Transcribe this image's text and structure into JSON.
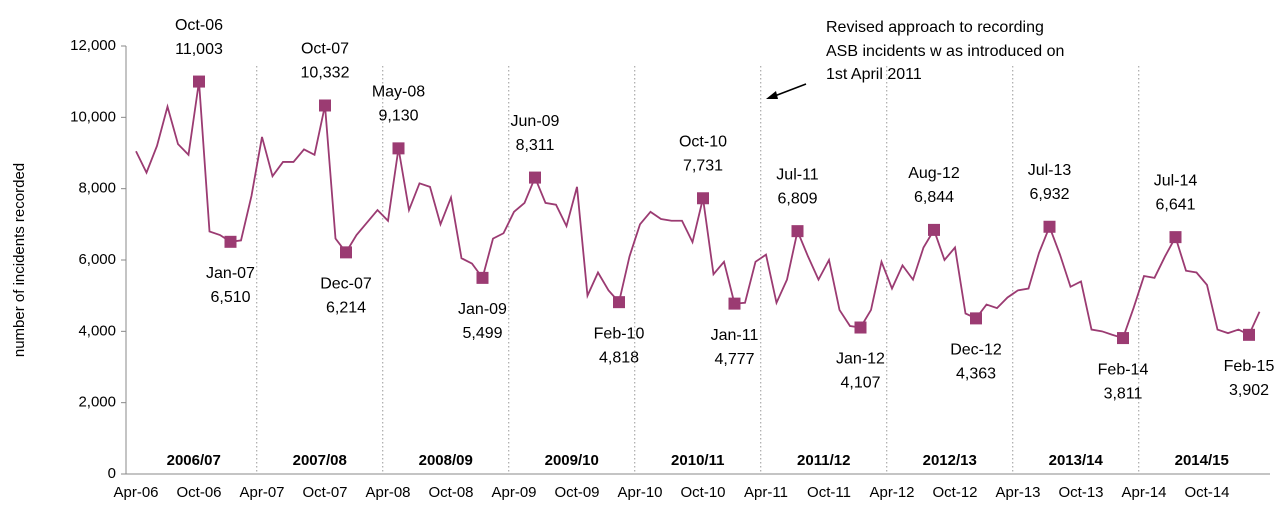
{
  "chart_data": {
    "type": "line",
    "y_label": "number of incidents recorded",
    "annotation": [
      "Revised approach to recording",
      "ASB incidents w as introduced on",
      "1st April 2011"
    ],
    "periods": [
      "2006/07",
      "2007/08",
      "2008/09",
      "2009/10",
      "2010/11",
      "2011/12",
      "2012/13",
      "2013/14",
      "2014/15"
    ],
    "categories": [
      "Apr-06",
      null,
      null,
      null,
      null,
      null,
      "Oct-06",
      null,
      null,
      null,
      null,
      null,
      "Apr-07",
      null,
      null,
      null,
      null,
      null,
      "Oct-07",
      null,
      null,
      null,
      null,
      null,
      "Apr-08",
      null,
      null,
      null,
      null,
      null,
      "Oct-08",
      null,
      null,
      null,
      null,
      null,
      "Apr-09",
      null,
      null,
      null,
      null,
      null,
      "Oct-09",
      null,
      null,
      null,
      null,
      null,
      "Apr-10",
      null,
      null,
      null,
      null,
      null,
      "Oct-10",
      null,
      null,
      null,
      null,
      null,
      "Apr-11",
      null,
      null,
      null,
      null,
      null,
      "Oct-11",
      null,
      null,
      null,
      null,
      null,
      "Apr-12",
      null,
      null,
      null,
      null,
      null,
      "Oct-12",
      null,
      null,
      null,
      null,
      null,
      "Apr-13",
      null,
      null,
      null,
      null,
      null,
      "Oct-13",
      null,
      null,
      null,
      null,
      null,
      "Apr-14",
      null,
      null,
      null,
      null,
      null,
      "Oct-14",
      null,
      null,
      null,
      null,
      null
    ],
    "series": [
      {
        "color": "#9b3b72",
        "values": [
          9050,
          8450,
          9200,
          10300,
          9250,
          8950,
          11003,
          6800,
          6700,
          6510,
          6550,
          7800,
          9450,
          8350,
          8750,
          8750,
          9100,
          8950,
          10332,
          6600,
          6214,
          6700,
          7050,
          7400,
          7100,
          9130,
          7400,
          8150,
          8050,
          7000,
          7750,
          6050,
          5900,
          5499,
          6600,
          6750,
          7350,
          7600,
          8311,
          7600,
          7550,
          6950,
          8050,
          5000,
          5650,
          5150,
          4818,
          6100,
          7000,
          7350,
          7150,
          7100,
          7100,
          6500,
          7731,
          5600,
          5950,
          4777,
          4800,
          5950,
          6150,
          4800,
          5450,
          6809,
          6100,
          5450,
          6000,
          4600,
          4150,
          4107,
          4600,
          5950,
          5200,
          5850,
          5450,
          6350,
          6844,
          6000,
          6350,
          4500,
          4363,
          4750,
          4650,
          4950,
          5150,
          5200,
          6200,
          6932,
          6150,
          5250,
          5400,
          4050,
          4000,
          3900,
          3811,
          4650,
          5550,
          5500,
          6100,
          6641,
          5700,
          5650,
          5300,
          4050,
          3950,
          4050,
          3902,
          4550
        ],
        "point_labels": [
          null,
          null,
          null,
          null,
          null,
          null,
          "Oct-06",
          null,
          null,
          "Jan-07",
          null,
          null,
          null,
          null,
          null,
          null,
          null,
          null,
          "Oct-07",
          null,
          "Dec-07",
          null,
          null,
          null,
          null,
          "May-08",
          null,
          null,
          null,
          null,
          null,
          null,
          null,
          "Jan-09",
          null,
          null,
          null,
          null,
          "Jun-09",
          null,
          null,
          null,
          null,
          null,
          null,
          null,
          "Feb-10",
          null,
          null,
          null,
          null,
          null,
          null,
          null,
          "Oct-10",
          null,
          null,
          "Jan-11",
          null,
          null,
          null,
          null,
          null,
          "Jul-11",
          null,
          null,
          null,
          null,
          null,
          "Jan-12",
          null,
          null,
          null,
          null,
          null,
          null,
          "Aug-12",
          null,
          null,
          null,
          "Dec-12",
          null,
          null,
          null,
          null,
          null,
          null,
          "Jul-13",
          null,
          null,
          null,
          null,
          null,
          null,
          "Feb-14",
          null,
          null,
          null,
          null,
          "Jul-14",
          null,
          null,
          null,
          null,
          null,
          null,
          "Feb-15",
          null
        ],
        "value_labels": [
          null,
          null,
          null,
          null,
          null,
          null,
          "11,003",
          null,
          null,
          "6,510",
          null,
          null,
          null,
          null,
          null,
          null,
          null,
          null,
          "10,332",
          null,
          "6,214",
          null,
          null,
          null,
          null,
          "9,130",
          null,
          null,
          null,
          null,
          null,
          null,
          null,
          "5,499",
          null,
          null,
          null,
          null,
          "8,311",
          null,
          null,
          null,
          null,
          null,
          null,
          null,
          "4,818",
          null,
          null,
          null,
          null,
          null,
          null,
          null,
          "7,731",
          null,
          null,
          "4,777",
          null,
          null,
          null,
          null,
          null,
          "6,809",
          null,
          null,
          null,
          null,
          null,
          "4,107",
          null,
          null,
          null,
          null,
          null,
          null,
          "6,844",
          null,
          null,
          null,
          "4,363",
          null,
          null,
          null,
          null,
          null,
          null,
          "6,932",
          null,
          null,
          null,
          null,
          null,
          null,
          "3,811",
          null,
          null,
          null,
          null,
          "6,641",
          null,
          null,
          null,
          null,
          null,
          null,
          "3,902",
          null
        ]
      }
    ],
    "ylim": [
      0,
      12000
    ],
    "yticks": [
      0,
      {
        "value": 2000,
        "label": "2,000"
      },
      {
        "value": 4000,
        "label": "4,000"
      },
      {
        "value": 6000,
        "label": "6,000"
      },
      {
        "value": 8000,
        "label": "8,000"
      },
      {
        "value": 10000,
        "label": "10,000"
      },
      {
        "value": 12000,
        "label": "12,000"
      }
    ]
  }
}
